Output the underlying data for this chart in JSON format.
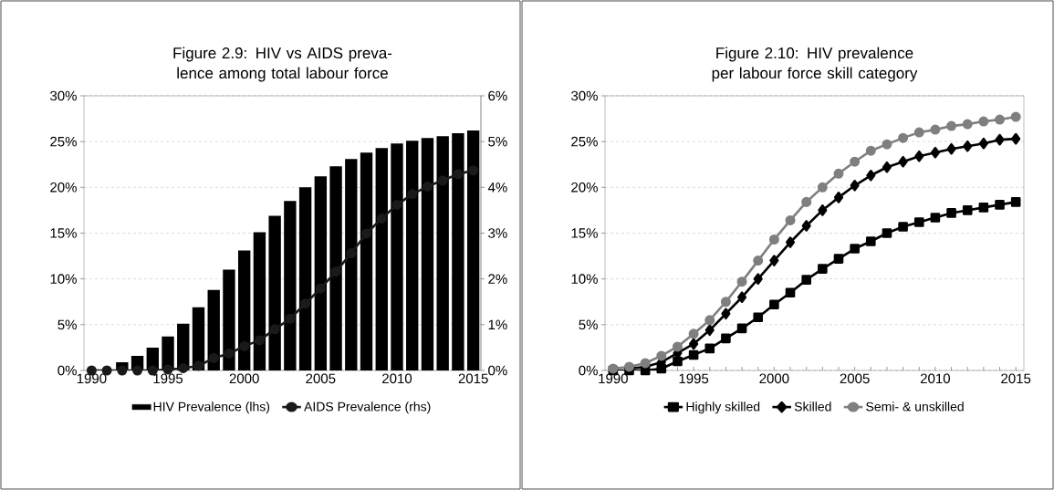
{
  "chart_data": [
    {
      "type": "bar",
      "title": "Figure 2.9: HIV vs AIDS preva-lence among total labour force",
      "x": [
        1990,
        1991,
        1992,
        1993,
        1994,
        1995,
        1996,
        1997,
        1998,
        1999,
        2000,
        2001,
        2002,
        2003,
        2004,
        2005,
        2006,
        2007,
        2008,
        2009,
        2010,
        2011,
        2012,
        2013,
        2014,
        2015
      ],
      "xlim": [
        1989.5,
        2015.5
      ],
      "xticks": [
        1990,
        {
          "value": 1991,
          "label": null
        },
        {
          "value": 1992,
          "label": null
        },
        {
          "value": 1993,
          "label": null
        },
        {
          "value": 1994,
          "label": null
        },
        1995,
        {
          "value": 1996,
          "label": null
        },
        {
          "value": 1997,
          "label": null
        },
        {
          "value": 1998,
          "label": null
        },
        {
          "value": 1999,
          "label": null
        },
        2000,
        {
          "value": 2001,
          "label": null
        },
        {
          "value": 2002,
          "label": null
        },
        {
          "value": 2003,
          "label": null
        },
        {
          "value": 2004,
          "label": null
        },
        2005,
        {
          "value": 2006,
          "label": null
        },
        {
          "value": 2007,
          "label": null
        },
        {
          "value": 2008,
          "label": null
        },
        {
          "value": 2009,
          "label": null
        },
        2010,
        {
          "value": 2011,
          "label": null
        },
        {
          "value": 2012,
          "label": null
        },
        {
          "value": 2013,
          "label": null
        },
        {
          "value": 2014,
          "label": null
        },
        2015
      ],
      "ylim": [
        0,
        30
      ],
      "yticks": [
        {
          "value": 0,
          "label": "0%"
        },
        {
          "value": 5,
          "label": "5%"
        },
        {
          "value": 10,
          "label": "10%"
        },
        {
          "value": 15,
          "label": "15%"
        },
        {
          "value": 20,
          "label": "20%"
        },
        {
          "value": 25,
          "label": "25%"
        },
        {
          "value": 30,
          "label": "30%"
        }
      ],
      "y2lim": [
        0,
        6
      ],
      "y2ticks": [
        {
          "value": 0,
          "label": "0%"
        },
        {
          "value": 1,
          "label": "1%"
        },
        {
          "value": 2,
          "label": "2%"
        },
        {
          "value": 3,
          "label": "3%"
        },
        {
          "value": 4,
          "label": "4%"
        },
        {
          "value": 5,
          "label": "5%"
        },
        {
          "value": 6,
          "label": "6%"
        }
      ],
      "grid": "y",
      "legend": "bottom",
      "series": [
        {
          "name": "HIV Prevalence (lhs)",
          "color": "#000000",
          "values": [
            null,
            null,
            0.9,
            1.6,
            2.5,
            3.7,
            5.1,
            6.9,
            8.8,
            11.0,
            13.1,
            15.1,
            16.9,
            18.5,
            20.0,
            21.2,
            22.3,
            23.1,
            23.8,
            24.3,
            24.8,
            25.1,
            25.4,
            25.6,
            25.9,
            26.2
          ]
        },
        {
          "name": "AIDS Prevalence (rhs)",
          "type": "line",
          "axis": "y2",
          "marker": "circle",
          "color": "#1a1a1a",
          "values": [
            0,
            0,
            0,
            0,
            0,
            0.02,
            0.05,
            0.1,
            0.27,
            0.37,
            0.53,
            0.66,
            0.9,
            1.13,
            1.46,
            1.79,
            2.16,
            2.56,
            2.99,
            3.32,
            3.62,
            3.85,
            4.02,
            4.15,
            4.29,
            4.37
          ]
        }
      ]
    },
    {
      "type": "line",
      "title": "Figure 2.10: HIV prevalence per labour force skill category",
      "x": [
        1990,
        1991,
        1992,
        1993,
        1994,
        1995,
        1996,
        1997,
        1998,
        1999,
        2000,
        2001,
        2002,
        2003,
        2004,
        2005,
        2006,
        2007,
        2008,
        2009,
        2010,
        2011,
        2012,
        2013,
        2014,
        2015
      ],
      "xlim": [
        1989.5,
        2015.5
      ],
      "xticks": [
        1990,
        {
          "value": 1991,
          "label": null
        },
        {
          "value": 1992,
          "label": null
        },
        {
          "value": 1993,
          "label": null
        },
        {
          "value": 1994,
          "label": null
        },
        1995,
        {
          "value": 1996,
          "label": null
        },
        {
          "value": 1997,
          "label": null
        },
        {
          "value": 1998,
          "label": null
        },
        {
          "value": 1999,
          "label": null
        },
        2000,
        {
          "value": 2001,
          "label": null
        },
        {
          "value": 2002,
          "label": null
        },
        {
          "value": 2003,
          "label": null
        },
        {
          "value": 2004,
          "label": null
        },
        2005,
        {
          "value": 2006,
          "label": null
        },
        {
          "value": 2007,
          "label": null
        },
        {
          "value": 2008,
          "label": null
        },
        {
          "value": 2009,
          "label": null
        },
        2010,
        {
          "value": 2011,
          "label": null
        },
        {
          "value": 2012,
          "label": null
        },
        {
          "value": 2013,
          "label": null
        },
        {
          "value": 2014,
          "label": null
        },
        2015
      ],
      "ylim": [
        0,
        30
      ],
      "yticks": [
        {
          "value": 0,
          "label": "0%"
        },
        {
          "value": 5,
          "label": "5%"
        },
        {
          "value": 10,
          "label": "10%"
        },
        {
          "value": 15,
          "label": "15%"
        },
        {
          "value": 20,
          "label": "20%"
        },
        {
          "value": 25,
          "label": "25%"
        },
        {
          "value": 30,
          "label": "30%"
        }
      ],
      "grid": "y",
      "legend": "bottom",
      "line_style": "solid",
      "series": [
        {
          "name": "Highly skilled",
          "marker": "square",
          "color": "#000000",
          "values": [
            0,
            0,
            0,
            0.2,
            1.0,
            1.7,
            2.4,
            3.5,
            4.6,
            5.8,
            7.2,
            8.5,
            9.9,
            11.1,
            12.2,
            13.3,
            14.1,
            15.0,
            15.7,
            16.2,
            16.7,
            17.2,
            17.5,
            17.8,
            18.1,
            18.4
          ]
        },
        {
          "name": "Skilled",
          "marker": "diamond",
          "color": "#000000",
          "values": [
            null,
            0.2,
            0.4,
            0.9,
            1.9,
            2.9,
            4.4,
            6.2,
            8.0,
            10.0,
            12.0,
            14.0,
            15.8,
            17.5,
            18.9,
            20.2,
            21.3,
            22.2,
            22.8,
            23.4,
            23.8,
            24.2,
            24.5,
            24.8,
            25.2,
            25.3
          ]
        },
        {
          "name": "Semi- & unskilled",
          "marker": "circle",
          "color": "#7f7f7f",
          "values": [
            0.2,
            0.4,
            0.8,
            1.6,
            2.6,
            4.0,
            5.5,
            7.5,
            9.7,
            12.0,
            14.3,
            16.4,
            18.4,
            20.0,
            21.5,
            22.8,
            24.0,
            24.7,
            25.4,
            26.0,
            26.3,
            26.7,
            26.9,
            27.2,
            27.4,
            27.7
          ]
        }
      ]
    }
  ]
}
